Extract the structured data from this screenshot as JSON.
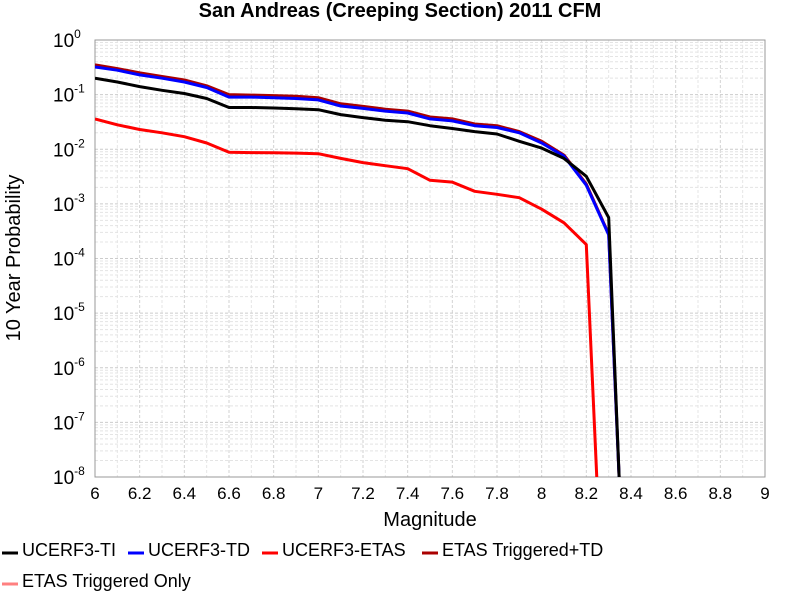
{
  "chart_data": {
    "type": "line",
    "title": "San Andreas (Creeping Section) 2011 CFM",
    "xlabel": "Magnitude",
    "ylabel": "10 Year Probability",
    "xlim": [
      6,
      9
    ],
    "ylim": [
      1e-08,
      1
    ],
    "y_scale": "log",
    "grid": true,
    "x_ticks": [
      "6",
      "6.2",
      "6.4",
      "6.6",
      "6.8",
      "7",
      "7.2",
      "7.4",
      "7.6",
      "7.8",
      "8",
      "8.2",
      "8.4",
      "8.6",
      "8.8",
      "9"
    ],
    "y_ticks": [
      {
        "base": "10",
        "exp": "0"
      },
      {
        "base": "10",
        "exp": "-1"
      },
      {
        "base": "10",
        "exp": "-2"
      },
      {
        "base": "10",
        "exp": "-3"
      },
      {
        "base": "10",
        "exp": "-4"
      },
      {
        "base": "10",
        "exp": "-5"
      },
      {
        "base": "10",
        "exp": "-6"
      },
      {
        "base": "10",
        "exp": "-7"
      },
      {
        "base": "10",
        "exp": "-8"
      }
    ],
    "legend_position": "bottom",
    "series": [
      {
        "name": "UCERF3-TI",
        "color": "#000000",
        "x": [
          6.0,
          6.1,
          6.2,
          6.3,
          6.4,
          6.5,
          6.6,
          6.7,
          6.8,
          6.9,
          7.0,
          7.1,
          7.2,
          7.3,
          7.4,
          7.5,
          7.6,
          7.7,
          7.8,
          7.9,
          8.0,
          8.1,
          8.2,
          8.3,
          8.35
        ],
        "y": [
          0.2,
          0.17,
          0.14,
          0.12,
          0.105,
          0.085,
          0.058,
          0.058,
          0.057,
          0.055,
          0.053,
          0.043,
          0.038,
          0.034,
          0.032,
          0.027,
          0.024,
          0.021,
          0.019,
          0.014,
          0.0105,
          0.0068,
          0.0032,
          0.00056,
          1e-09
        ]
      },
      {
        "name": "UCERF3-TD",
        "color": "#0000ff",
        "x": [
          6.0,
          6.1,
          6.2,
          6.3,
          6.4,
          6.5,
          6.6,
          6.7,
          6.8,
          6.9,
          7.0,
          7.1,
          7.2,
          7.3,
          7.4,
          7.5,
          7.6,
          7.7,
          7.8,
          7.9,
          8.0,
          8.1,
          8.2,
          8.3,
          8.35
        ],
        "y": [
          0.32,
          0.28,
          0.23,
          0.2,
          0.17,
          0.135,
          0.09,
          0.09,
          0.088,
          0.085,
          0.08,
          0.062,
          0.056,
          0.05,
          0.046,
          0.036,
          0.033,
          0.027,
          0.025,
          0.02,
          0.013,
          0.0075,
          0.0022,
          0.00027,
          1e-09
        ]
      },
      {
        "name": "UCERF3-ETAS",
        "color": "#ff0000",
        "x": [
          6.0,
          6.1,
          6.2,
          6.3,
          6.4,
          6.5,
          6.6,
          6.7,
          6.8,
          6.9,
          7.0,
          7.1,
          7.2,
          7.3,
          7.4,
          7.5,
          7.6,
          7.7,
          7.8,
          7.9,
          8.0,
          8.1,
          8.2,
          8.25
        ],
        "y": [
          0.036,
          0.028,
          0.023,
          0.02,
          0.017,
          0.013,
          0.0088,
          0.0087,
          0.0086,
          0.0085,
          0.0083,
          0.0068,
          0.0057,
          0.005,
          0.0044,
          0.0027,
          0.0025,
          0.0017,
          0.0015,
          0.0013,
          0.0008,
          0.00045,
          0.00018,
          1e-09
        ]
      },
      {
        "name": "ETAS Triggered+TD",
        "color": "#aa0000",
        "x": [
          6.0,
          6.1,
          6.2,
          6.3,
          6.4,
          6.5,
          6.6,
          6.7,
          6.8,
          6.9,
          7.0,
          7.1,
          7.2,
          7.3,
          7.4,
          7.5,
          7.6,
          7.7,
          7.8,
          7.9,
          8.0,
          8.1,
          8.2,
          8.3,
          8.35
        ],
        "y": [
          0.35,
          0.3,
          0.25,
          0.215,
          0.185,
          0.145,
          0.1,
          0.098,
          0.096,
          0.093,
          0.088,
          0.068,
          0.061,
          0.054,
          0.05,
          0.039,
          0.036,
          0.029,
          0.027,
          0.021,
          0.014,
          0.0078,
          0.0023,
          0.00028,
          1e-09
        ]
      },
      {
        "name": "ETAS Triggered Only",
        "color": "#ff8080",
        "x": [],
        "y": []
      }
    ]
  }
}
